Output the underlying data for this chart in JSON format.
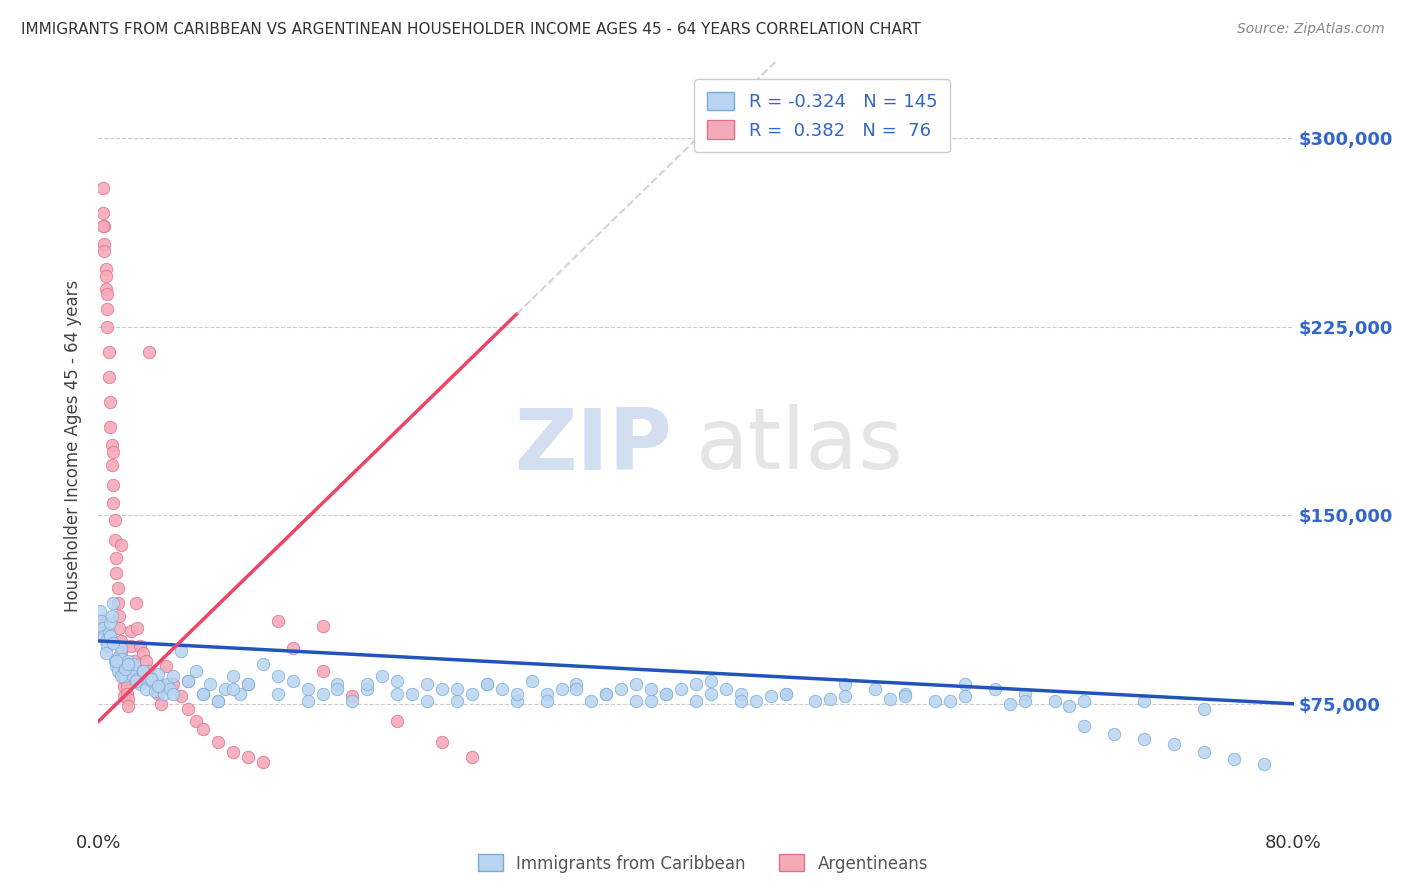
{
  "title": "IMMIGRANTS FROM CARIBBEAN VS ARGENTINEAN HOUSEHOLDER INCOME AGES 45 - 64 YEARS CORRELATION CHART",
  "source": "Source: ZipAtlas.com",
  "ylabel": "Householder Income Ages 45 - 64 years",
  "xlim": [
    0.0,
    0.8
  ],
  "ylim": [
    25000,
    330000
  ],
  "ytick_positions": [
    75000,
    150000,
    225000,
    300000
  ],
  "ytick_labels": [
    "$75,000",
    "$150,000",
    "$225,000",
    "$300,000"
  ],
  "caribbean_color": "#b8d4f0",
  "caribbean_edge": "#7aaad8",
  "argentinean_color": "#f5aab8",
  "argentinean_edge": "#e07090",
  "caribbean_R": -0.324,
  "caribbean_N": 145,
  "argentinean_R": 0.382,
  "argentinean_N": 76,
  "legend_text_color": "#3366cc",
  "watermark_zip": "ZIP",
  "watermark_atlas": "atlas",
  "background_color": "#ffffff",
  "grid_color": "#cccccc",
  "trend_caribbean_color": "#2255bb",
  "trend_argentinean_color": "#ee4466",
  "caribbean_points_x": [
    0.001,
    0.002,
    0.003,
    0.004,
    0.005,
    0.006,
    0.007,
    0.008,
    0.009,
    0.01,
    0.011,
    0.012,
    0.013,
    0.014,
    0.015,
    0.016,
    0.017,
    0.018,
    0.019,
    0.02,
    0.022,
    0.024,
    0.026,
    0.028,
    0.03,
    0.032,
    0.034,
    0.036,
    0.038,
    0.04,
    0.042,
    0.044,
    0.046,
    0.048,
    0.05,
    0.055,
    0.06,
    0.065,
    0.07,
    0.075,
    0.08,
    0.085,
    0.09,
    0.095,
    0.1,
    0.11,
    0.12,
    0.13,
    0.14,
    0.15,
    0.16,
    0.17,
    0.18,
    0.19,
    0.2,
    0.21,
    0.22,
    0.23,
    0.24,
    0.25,
    0.26,
    0.27,
    0.28,
    0.29,
    0.3,
    0.31,
    0.32,
    0.33,
    0.34,
    0.35,
    0.36,
    0.37,
    0.38,
    0.39,
    0.4,
    0.41,
    0.42,
    0.43,
    0.44,
    0.46,
    0.48,
    0.5,
    0.52,
    0.54,
    0.56,
    0.58,
    0.6,
    0.62,
    0.64,
    0.66,
    0.68,
    0.7,
    0.72,
    0.74,
    0.76,
    0.78,
    0.005,
    0.008,
    0.01,
    0.012,
    0.015,
    0.018,
    0.02,
    0.025,
    0.03,
    0.035,
    0.04,
    0.05,
    0.06,
    0.07,
    0.08,
    0.09,
    0.1,
    0.12,
    0.14,
    0.16,
    0.18,
    0.2,
    0.22,
    0.24,
    0.26,
    0.28,
    0.3,
    0.32,
    0.34,
    0.36,
    0.38,
    0.4,
    0.43,
    0.46,
    0.5,
    0.54,
    0.58,
    0.62,
    0.66,
    0.7,
    0.74,
    0.37,
    0.41,
    0.45,
    0.49,
    0.53,
    0.57,
    0.61,
    0.65
  ],
  "caribbean_points_y": [
    112000,
    108000,
    105000,
    102000,
    100000,
    98000,
    103000,
    107000,
    110000,
    115000,
    92000,
    90000,
    88000,
    94000,
    97000,
    93000,
    88000,
    86000,
    89000,
    92000,
    87000,
    91000,
    85000,
    83000,
    88000,
    81000,
    85000,
    84000,
    80000,
    87000,
    82000,
    79000,
    83000,
    81000,
    86000,
    96000,
    84000,
    88000,
    79000,
    83000,
    76000,
    81000,
    86000,
    79000,
    83000,
    91000,
    86000,
    84000,
    81000,
    79000,
    83000,
    76000,
    81000,
    86000,
    84000,
    79000,
    83000,
    81000,
    76000,
    79000,
    83000,
    81000,
    76000,
    84000,
    79000,
    81000,
    83000,
    76000,
    79000,
    81000,
    83000,
    76000,
    79000,
    81000,
    83000,
    84000,
    81000,
    79000,
    76000,
    79000,
    76000,
    83000,
    81000,
    79000,
    76000,
    83000,
    81000,
    79000,
    76000,
    66000,
    63000,
    61000,
    59000,
    56000,
    53000,
    51000,
    95000,
    102000,
    99000,
    92000,
    86000,
    89000,
    91000,
    84000,
    88000,
    85000,
    82000,
    79000,
    84000,
    79000,
    76000,
    81000,
    83000,
    79000,
    76000,
    81000,
    83000,
    79000,
    76000,
    81000,
    83000,
    79000,
    76000,
    81000,
    79000,
    76000,
    79000,
    76000,
    76000,
    79000,
    78000,
    78000,
    78000,
    76000,
    76000,
    76000,
    73000,
    81000,
    79000,
    78000,
    77000,
    77000,
    76000,
    75000,
    74000
  ],
  "argentinean_points_x": [
    0.001,
    0.002,
    0.003,
    0.003,
    0.004,
    0.004,
    0.005,
    0.005,
    0.006,
    0.006,
    0.007,
    0.007,
    0.008,
    0.008,
    0.009,
    0.009,
    0.01,
    0.01,
    0.011,
    0.011,
    0.012,
    0.012,
    0.013,
    0.013,
    0.014,
    0.014,
    0.015,
    0.015,
    0.016,
    0.016,
    0.017,
    0.017,
    0.018,
    0.018,
    0.019,
    0.019,
    0.02,
    0.02,
    0.022,
    0.022,
    0.024,
    0.025,
    0.026,
    0.028,
    0.03,
    0.032,
    0.034,
    0.036,
    0.038,
    0.04,
    0.042,
    0.045,
    0.05,
    0.055,
    0.06,
    0.065,
    0.07,
    0.08,
    0.09,
    0.1,
    0.11,
    0.12,
    0.13,
    0.15,
    0.17,
    0.2,
    0.23,
    0.25,
    0.034,
    0.15,
    0.003,
    0.004,
    0.005,
    0.006,
    0.01,
    0.015
  ],
  "argentinean_points_y": [
    105000,
    108000,
    280000,
    270000,
    265000,
    258000,
    248000,
    240000,
    232000,
    225000,
    215000,
    205000,
    195000,
    185000,
    178000,
    170000,
    162000,
    155000,
    148000,
    140000,
    133000,
    127000,
    121000,
    115000,
    110000,
    105000,
    100000,
    95000,
    90000,
    86000,
    82000,
    78000,
    88000,
    85000,
    82000,
    79000,
    77000,
    74000,
    104000,
    98000,
    92000,
    115000,
    105000,
    98000,
    95000,
    92000,
    88000,
    85000,
    82000,
    79000,
    75000,
    90000,
    83000,
    78000,
    73000,
    68000,
    65000,
    60000,
    56000,
    54000,
    52000,
    108000,
    97000,
    88000,
    78000,
    68000,
    60000,
    54000,
    215000,
    106000,
    265000,
    255000,
    245000,
    238000,
    175000,
    138000
  ]
}
